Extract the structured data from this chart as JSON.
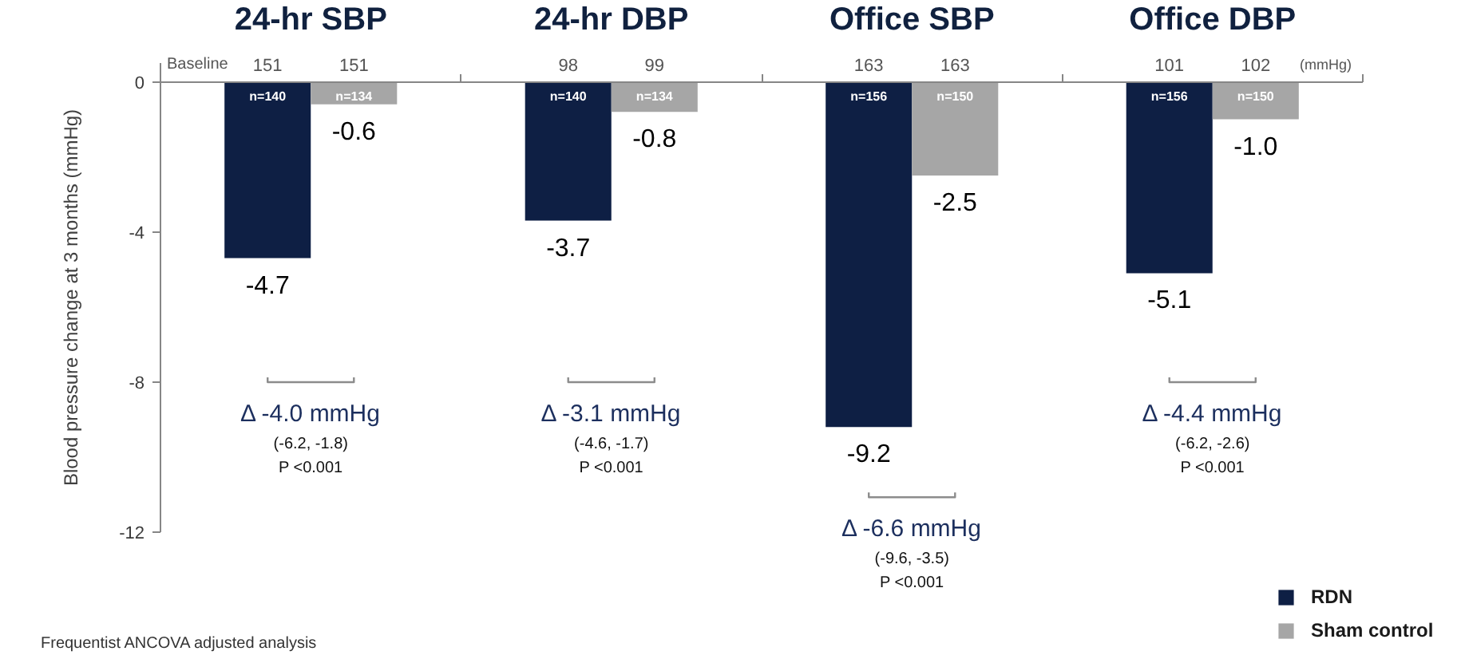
{
  "chart_data": {
    "type": "bar",
    "categories": [
      "24-hr SBP",
      "24-hr DBP",
      "Office SBP",
      "Office DBP"
    ],
    "series": [
      {
        "name": "RDN",
        "color": "#0e1f44",
        "values": [
          -4.7,
          -3.7,
          -9.2,
          -5.1
        ],
        "value_labels": [
          "-4.7",
          "-3.7",
          "-9.2",
          "-5.1"
        ]
      },
      {
        "name": "Sham control",
        "color": "#a6a6a6",
        "values": [
          -0.6,
          -0.8,
          -2.5,
          -1.0
        ],
        "value_labels": [
          "-0.6",
          "-0.8",
          "-2.5",
          "-1.0"
        ]
      }
    ],
    "ylabel": "Blood pressure change at 3 months (mmHg)",
    "ylim": [
      -12,
      0.5
    ],
    "yticks": [
      0,
      -4,
      -8,
      -12
    ],
    "legend": "bottom right",
    "annotations": [
      "Baseline",
      "151",
      "151",
      "98",
      "99",
      "163",
      "163",
      "101",
      "102",
      "(mmHg)",
      {
        "text": "n=140",
        "x": "24-hr SBP",
        "y": -0.4
      },
      {
        "text": "n=134",
        "x": "24-hr SBP",
        "y": -0.4
      },
      {
        "text": "n=140",
        "x": "24-hr DBP",
        "y": -0.4
      },
      {
        "text": "n=134",
        "x": "24-hr DBP",
        "y": -0.4
      },
      {
        "text": "n=156",
        "x": "Office SBP",
        "y": -0.4
      },
      {
        "text": "n=150",
        "x": "Office SBP",
        "y": -0.4
      },
      {
        "text": "n=156",
        "x": "Office DBP",
        "y": -0.4
      },
      {
        "text": "n=150",
        "x": "Office DBP",
        "y": -0.4
      },
      "Δ -4.0 mmHg",
      "(-6.2, -1.8)",
      "P <0.001",
      "Δ -3.1 mmHg",
      "(-4.6, -1.7)",
      "P <0.001",
      "Δ -6.6 mmHg",
      "(-9.6, -3.5)",
      "P <0.001",
      "Δ -4.4 mmHg",
      "(-6.2, -2.6)",
      "P <0.001",
      "Frequentist ANCOVA adjusted analysis"
    ]
  }
}
